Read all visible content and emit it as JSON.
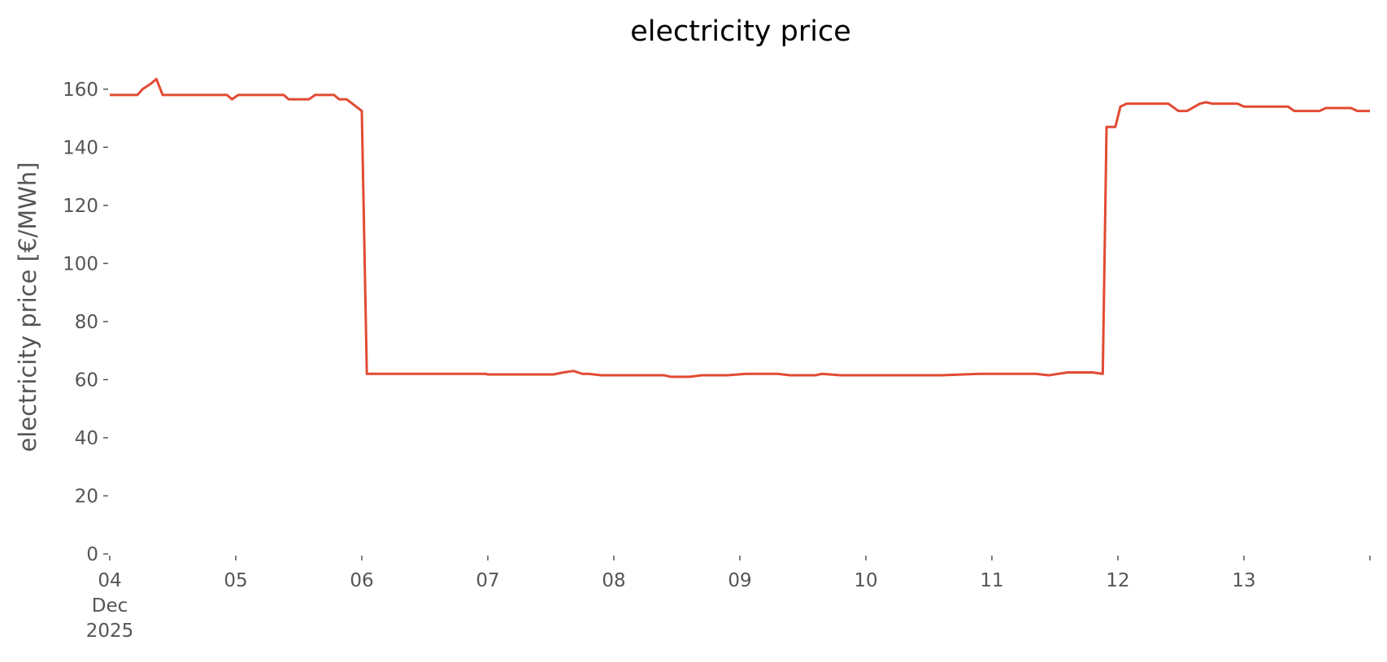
{
  "chart_data": {
    "type": "line",
    "title": "electricity price",
    "ylabel": "electricity price [€/MWh]",
    "xlim": [
      0,
      10
    ],
    "ylim": [
      0,
      170
    ],
    "xticks": [
      {
        "value": 0,
        "label": "04 Dec 2025"
      },
      {
        "value": 1,
        "label": "05"
      },
      {
        "value": 2,
        "label": "06"
      },
      {
        "value": 3,
        "label": "07"
      },
      {
        "value": 4,
        "label": "08"
      },
      {
        "value": 5,
        "label": "09"
      },
      {
        "value": 6,
        "label": "10"
      },
      {
        "value": 7,
        "label": "11"
      },
      {
        "value": 8,
        "label": "12"
      },
      {
        "value": 9,
        "label": "13"
      },
      {
        "value": 10,
        "label": ""
      }
    ],
    "yticks": [
      0,
      20,
      40,
      60,
      80,
      100,
      120,
      140,
      160
    ],
    "grid": false,
    "series": [
      {
        "name": "electricity price",
        "color": "#E24A33",
        "x": [
          0,
          0.22,
          0.26,
          0.33,
          0.37,
          0.42,
          0.93,
          0.97,
          1.02,
          1.06,
          1.38,
          1.42,
          1.58,
          1.63,
          1.78,
          1.82,
          1.88,
          2.0,
          2.04,
          2.98,
          3.0,
          3.52,
          3.6,
          3.68,
          3.75,
          3.8,
          3.9,
          4.4,
          4.45,
          4.6,
          4.7,
          4.9,
          5.05,
          5.3,
          5.4,
          5.6,
          5.65,
          5.8,
          6.0,
          6.5,
          6.6,
          6.9,
          7.05,
          7.35,
          7.45,
          7.6,
          7.8,
          7.88,
          7.91,
          7.98,
          8.02,
          8.07,
          8.4,
          8.48,
          8.55,
          8.65,
          8.7,
          8.75,
          8.95,
          9.0,
          9.35,
          9.4,
          9.6,
          9.65,
          9.85,
          9.9,
          10
        ],
        "values": [
          158,
          158,
          160,
          162,
          163.5,
          158,
          158,
          156.5,
          158,
          158,
          158,
          156.5,
          156.5,
          158,
          158,
          156.5,
          156.5,
          152.5,
          62,
          62,
          61.8,
          61.8,
          62.5,
          63,
          62,
          62,
          61.5,
          61.5,
          61,
          61,
          61.5,
          61.5,
          62,
          62,
          61.5,
          61.5,
          62,
          61.5,
          61.5,
          61.5,
          61.5,
          62,
          62,
          62,
          61.5,
          62.5,
          62.5,
          62,
          147,
          147,
          154,
          155,
          155,
          152.5,
          152.5,
          155,
          155.5,
          155,
          155,
          154,
          154,
          152.5,
          152.5,
          153.5,
          153.5,
          152.5,
          152.5
        ]
      }
    ]
  }
}
